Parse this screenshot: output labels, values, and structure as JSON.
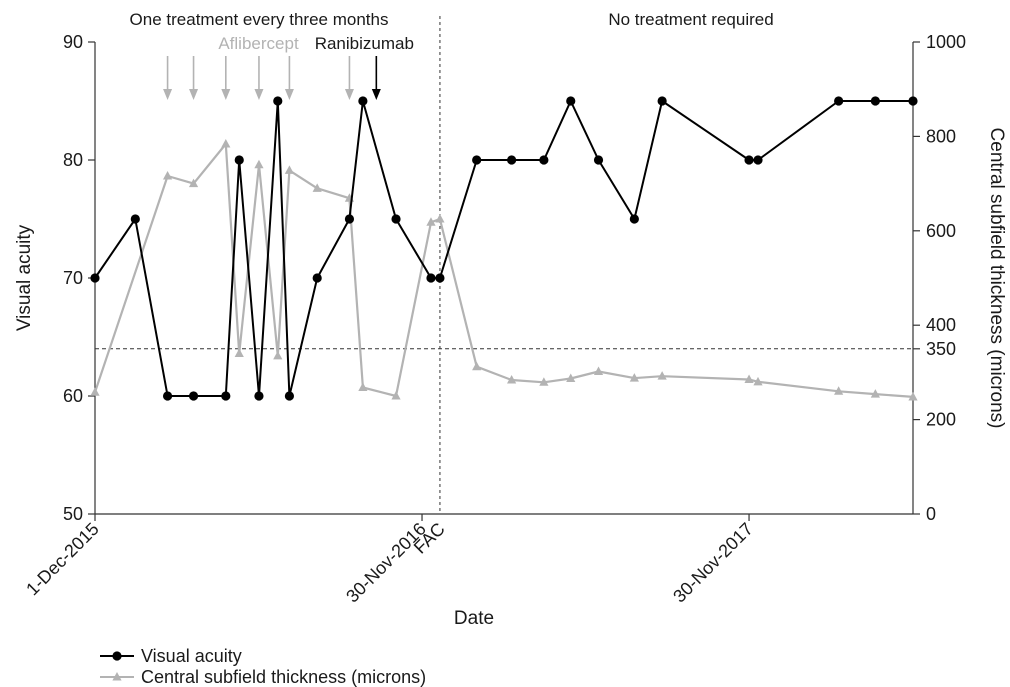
{
  "chart_data": {
    "type": "line",
    "xlabel": "Date",
    "x_ticks": [
      {
        "date": "2015-12-01",
        "label": "1-Dec-2015"
      },
      {
        "date": "2016-11-30",
        "label": "30-Nov-2016"
      },
      {
        "date": "2017-11-30",
        "label": "30-Nov-2017"
      }
    ],
    "x_range": [
      "2015-12-01",
      "2018-06-01"
    ],
    "event_marker": {
      "date": "2016-12-20",
      "label": "FAC"
    },
    "left_axis": {
      "label": "Visual acuity",
      "ylim": [
        50,
        90
      ],
      "ticks": [
        50,
        60,
        70,
        80,
        90
      ]
    },
    "right_axis": {
      "label": "Central subfield thickness (microns)",
      "ylim": [
        0,
        1000
      ],
      "ticks": [
        0,
        200,
        400,
        600,
        800,
        1000
      ],
      "extra_tick": 350
    },
    "threshold_line": {
      "axis": "right",
      "value": 350
    },
    "phase_labels": [
      {
        "text": "One treatment every three months",
        "phase": "before-FAC"
      },
      {
        "text": "No treatment required",
        "phase": "after-FAC"
      }
    ],
    "injections": [
      {
        "label": "Aflibercept",
        "color": "#b3b3b3",
        "dates": [
          "2016-02-20",
          "2016-03-20",
          "2016-04-25",
          "2016-06-01",
          "2016-07-05",
          "2016-09-10"
        ]
      },
      {
        "label": "Ranibizumab",
        "color": "#000000",
        "dates": [
          "2016-10-10"
        ]
      }
    ],
    "series": [
      {
        "name": "Visual acuity",
        "axis": "left",
        "color": "#000000",
        "marker": "circle",
        "points": [
          {
            "x": "2015-12-01",
            "y": 70
          },
          {
            "x": "2016-01-15",
            "y": 75
          },
          {
            "x": "2016-02-20",
            "y": 60
          },
          {
            "x": "2016-03-20",
            "y": 60
          },
          {
            "x": "2016-04-25",
            "y": 60
          },
          {
            "x": "2016-05-10",
            "y": 80
          },
          {
            "x": "2016-06-01",
            "y": 60
          },
          {
            "x": "2016-06-22",
            "y": 85
          },
          {
            "x": "2016-07-05",
            "y": 60
          },
          {
            "x": "2016-08-05",
            "y": 70
          },
          {
            "x": "2016-09-10",
            "y": 75
          },
          {
            "x": "2016-09-25",
            "y": 85
          },
          {
            "x": "2016-11-01",
            "y": 75
          },
          {
            "x": "2016-12-10",
            "y": 70
          },
          {
            "x": "2016-12-20",
            "y": 70
          },
          {
            "x": "2017-01-30",
            "y": 80
          },
          {
            "x": "2017-03-10",
            "y": 80
          },
          {
            "x": "2017-04-15",
            "y": 80
          },
          {
            "x": "2017-05-15",
            "y": 85
          },
          {
            "x": "2017-06-15",
            "y": 80
          },
          {
            "x": "2017-07-25",
            "y": 75
          },
          {
            "x": "2017-08-25",
            "y": 85
          },
          {
            "x": "2017-11-30",
            "y": 80
          },
          {
            "x": "2017-12-10",
            "y": 80
          },
          {
            "x": "2018-03-10",
            "y": 85
          },
          {
            "x": "2018-04-20",
            "y": 85
          },
          {
            "x": "2018-06-01",
            "y": 85
          }
        ]
      },
      {
        "name": "Central subfield thickness (microns)",
        "axis": "right",
        "color": "#b3b3b3",
        "marker": "triangle",
        "points": [
          {
            "x": "2015-12-01",
            "y": 258
          },
          {
            "x": "2016-02-20",
            "y": 716
          },
          {
            "x": "2016-03-20",
            "y": 700
          },
          {
            "x": "2016-04-25",
            "y": 784
          },
          {
            "x": "2016-05-10",
            "y": 340
          },
          {
            "x": "2016-06-01",
            "y": 740
          },
          {
            "x": "2016-06-22",
            "y": 335
          },
          {
            "x": "2016-07-05",
            "y": 728
          },
          {
            "x": "2016-08-05",
            "y": 690
          },
          {
            "x": "2016-09-10",
            "y": 669
          },
          {
            "x": "2016-09-25",
            "y": 268
          },
          {
            "x": "2016-11-01",
            "y": 250
          },
          {
            "x": "2016-12-10",
            "y": 618
          },
          {
            "x": "2016-12-20",
            "y": 625
          },
          {
            "x": "2017-01-30",
            "y": 312
          },
          {
            "x": "2017-03-10",
            "y": 284
          },
          {
            "x": "2017-04-15",
            "y": 279
          },
          {
            "x": "2017-05-15",
            "y": 287
          },
          {
            "x": "2017-06-15",
            "y": 302
          },
          {
            "x": "2017-07-25",
            "y": 288
          },
          {
            "x": "2017-08-25",
            "y": 292
          },
          {
            "x": "2017-11-30",
            "y": 285
          },
          {
            "x": "2017-12-10",
            "y": 280
          },
          {
            "x": "2018-03-10",
            "y": 260
          },
          {
            "x": "2018-04-20",
            "y": 254
          },
          {
            "x": "2018-06-01",
            "y": 248
          }
        ]
      }
    ],
    "legend": [
      {
        "name": "Visual acuity",
        "color": "#000000",
        "marker": "circle"
      },
      {
        "name": "Central subfield thickness (microns)",
        "color": "#b3b3b3",
        "marker": "triangle"
      }
    ],
    "legend_position": "bottom-left"
  }
}
